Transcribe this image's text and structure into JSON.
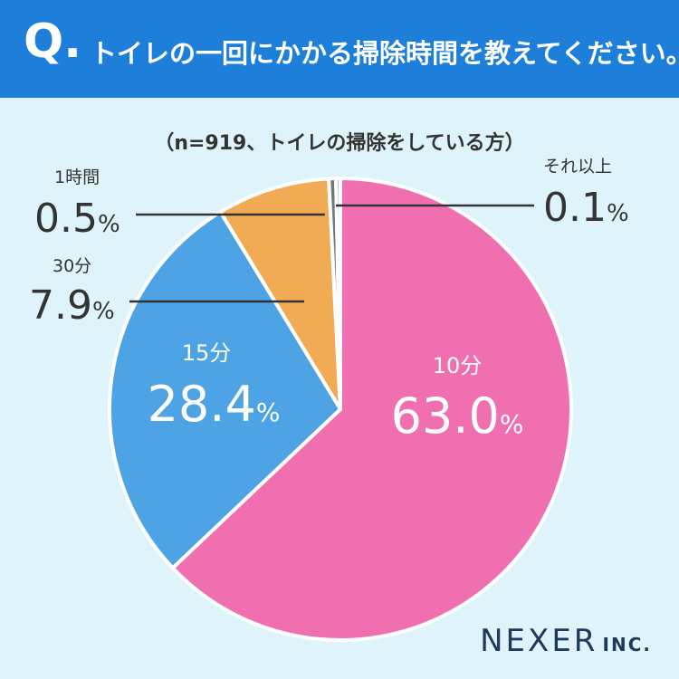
{
  "header": {
    "mark": "Q.",
    "question": "トイレの一回にかかる掃除時間を教えてください。"
  },
  "subtitle": "（n=919、トイレの掃除をしている方）",
  "logo": {
    "main": "NEXER",
    "suffix": "INC."
  },
  "chart_data": {
    "type": "pie",
    "title": "トイレの一回にかかる掃除時間を教えてください。",
    "subtitle": "（n=919、トイレの掃除をしている方）",
    "unit": "%",
    "slices": [
      {
        "label": "10分",
        "value": 63.0,
        "display": "63.0",
        "color": "#f06fb0"
      },
      {
        "label": "15分",
        "value": 28.4,
        "display": "28.4",
        "color": "#4da3e3"
      },
      {
        "label": "30分",
        "value": 7.9,
        "display": "7.9",
        "color": "#f2ab55"
      },
      {
        "label": "1時間",
        "value": 0.5,
        "display": "0.5",
        "color": "#777777"
      },
      {
        "label": "それ以上",
        "value": 0.1,
        "display": "0.1",
        "color": "#b5b5b5"
      }
    ]
  }
}
